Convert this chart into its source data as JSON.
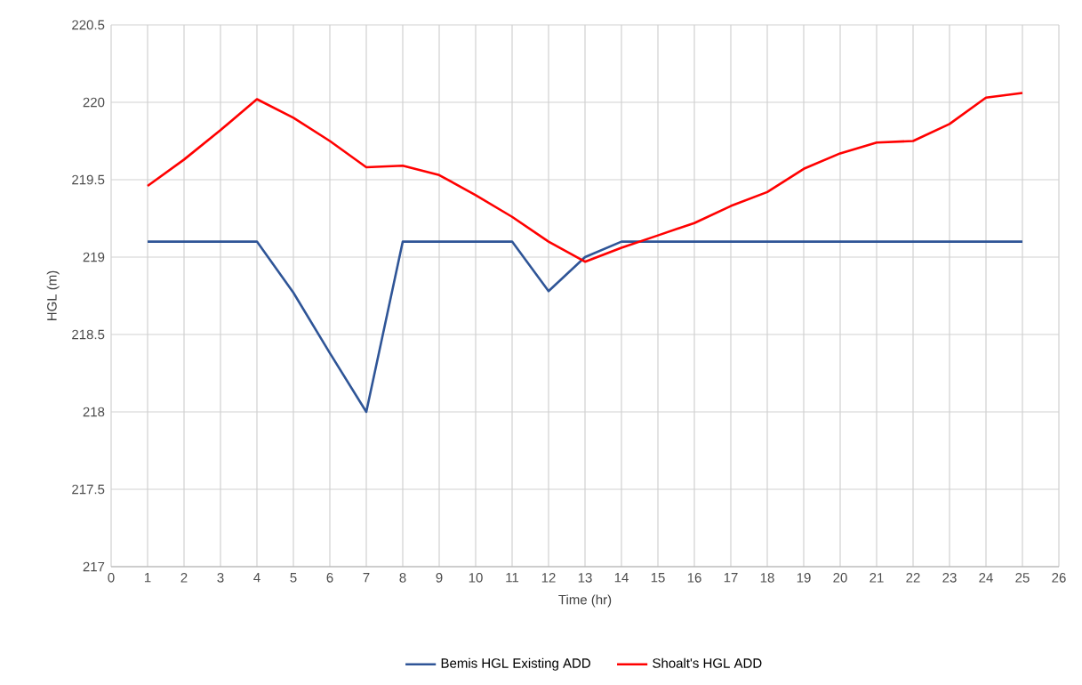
{
  "chart_data": {
    "type": "line",
    "xlabel": "Time (hr)",
    "ylabel": "HGL (m)",
    "x": [
      1,
      2,
      3,
      4,
      5,
      6,
      7,
      8,
      9,
      10,
      11,
      12,
      13,
      14,
      15,
      16,
      17,
      18,
      19,
      20,
      21,
      22,
      23,
      24,
      25
    ],
    "series": [
      {
        "name": "Bemis HGL Existing ADD",
        "color": "#2f5597",
        "values": [
          219.1,
          219.1,
          219.1,
          219.1,
          218.77,
          218.38,
          218.0,
          219.1,
          219.1,
          219.1,
          219.1,
          218.78,
          219.0,
          219.1,
          219.1,
          219.1,
          219.1,
          219.1,
          219.1,
          219.1,
          219.1,
          219.1,
          219.1,
          219.1,
          219.1
        ]
      },
      {
        "name": "Shoalt's HGL ADD",
        "color": "#ff0000",
        "values": [
          219.46,
          219.63,
          219.82,
          220.02,
          219.9,
          219.75,
          219.58,
          219.59,
          219.53,
          219.4,
          219.26,
          219.1,
          218.97,
          219.06,
          219.14,
          219.22,
          219.33,
          219.42,
          219.57,
          219.67,
          219.74,
          219.75,
          219.86,
          220.03,
          220.06
        ]
      }
    ],
    "xlim": [
      0,
      26
    ],
    "xticks": [
      0,
      1,
      2,
      3,
      4,
      5,
      6,
      7,
      8,
      9,
      10,
      11,
      12,
      13,
      14,
      15,
      16,
      17,
      18,
      19,
      20,
      21,
      22,
      23,
      24,
      25,
      26
    ],
    "ylim": [
      217,
      220.5
    ],
    "yticks": [
      217,
      217.5,
      218,
      218.5,
      219,
      219.5,
      220,
      220.5
    ],
    "grid": true,
    "legend": "bottom",
    "marker": "none",
    "line_style": "solid"
  }
}
